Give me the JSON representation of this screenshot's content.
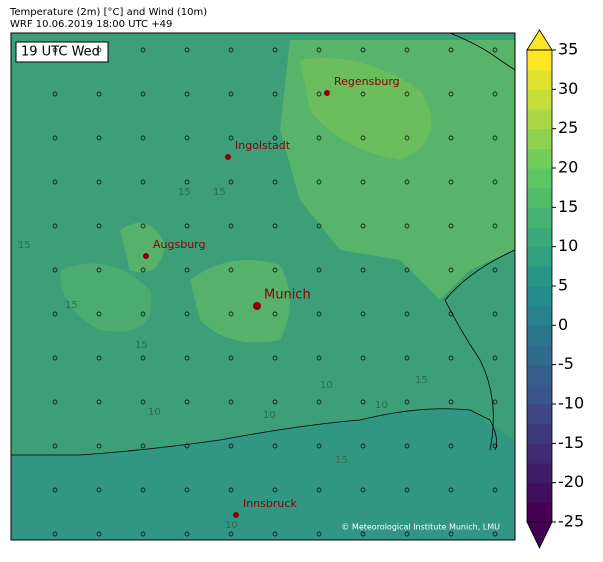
{
  "header": {
    "title": "Temperature (2m) [°C] and Wind (10m)",
    "subtitle": "WRF 10.06.2019 18:00 UTC +49"
  },
  "map": {
    "time_label": "19 UTC Wed",
    "cities": [
      "Regensburg",
      "Ingolstadt",
      "Augsburg",
      "Munich",
      "Innsbruck"
    ],
    "contour_labels": [
      15,
      15,
      15,
      15,
      15,
      10,
      10,
      10,
      15,
      10,
      10,
      15
    ],
    "credit": "© Meteorological Institute Munich, LMU"
  },
  "colorbar": {
    "lim": [
      -25,
      35
    ],
    "ticks": [
      -25,
      -20,
      -15,
      -10,
      -5,
      0,
      5,
      10,
      15,
      20,
      25,
      30,
      35
    ]
  }
}
